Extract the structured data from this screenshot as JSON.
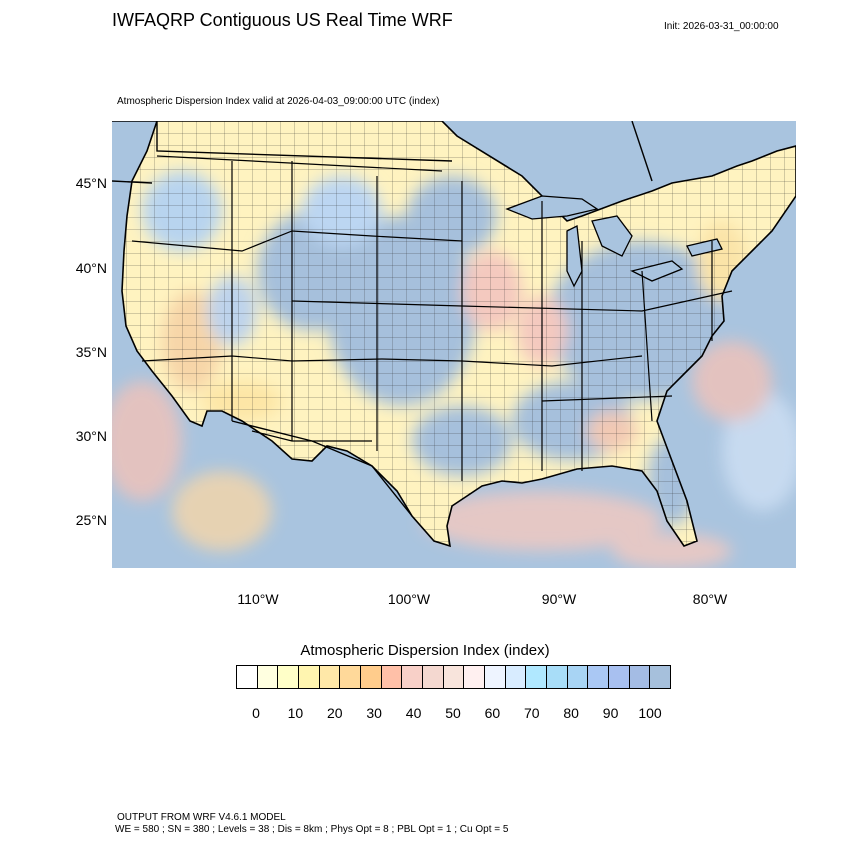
{
  "header": {
    "title": "IWFAQRP Contiguous US Real Time WRF",
    "init": "Init: 2026-03-31_00:00:00"
  },
  "map": {
    "subtitle": "Atmospheric Dispersion Index valid at 2026-04-03_09:00:00 UTC   (index)",
    "lat_labels": [
      "45°N",
      "40°N",
      "35°N",
      "30°N",
      "25°N"
    ],
    "lon_labels": [
      "110°W",
      "100°W",
      "90°W",
      "80°W"
    ],
    "ocean_color": "#a9c4df",
    "land_color": "#fff3c0"
  },
  "colorbar": {
    "title": "Atmospheric Dispersion Index  (index)",
    "ticks": [
      "0",
      "10",
      "20",
      "30",
      "40",
      "50",
      "60",
      "70",
      "80",
      "90",
      "100"
    ],
    "colors": [
      "#ffffff",
      "#ffffe0",
      "#ffffc8",
      "#fff5b0",
      "#ffe8a8",
      "#ffd99a",
      "#ffcc8c",
      "#ffc0a8",
      "#f8d0c8",
      "#f4d8d0",
      "#f8e4dc",
      "#fff0f0",
      "#eef4ff",
      "#d8ecff",
      "#b0e8ff",
      "#a8ddf8",
      "#a8d4f4",
      "#aac8f4",
      "#a8c0f0",
      "#a4bce4",
      "#a6c0dc"
    ]
  },
  "footer": {
    "line1": "OUTPUT FROM WRF V4.6.1 MODEL",
    "line2": "WE = 580 ; SN = 380 ; Levels = 38 ; Dis = 8km ; Phys Opt = 8 ; PBL Opt = 1 ; Cu Opt = 5"
  }
}
